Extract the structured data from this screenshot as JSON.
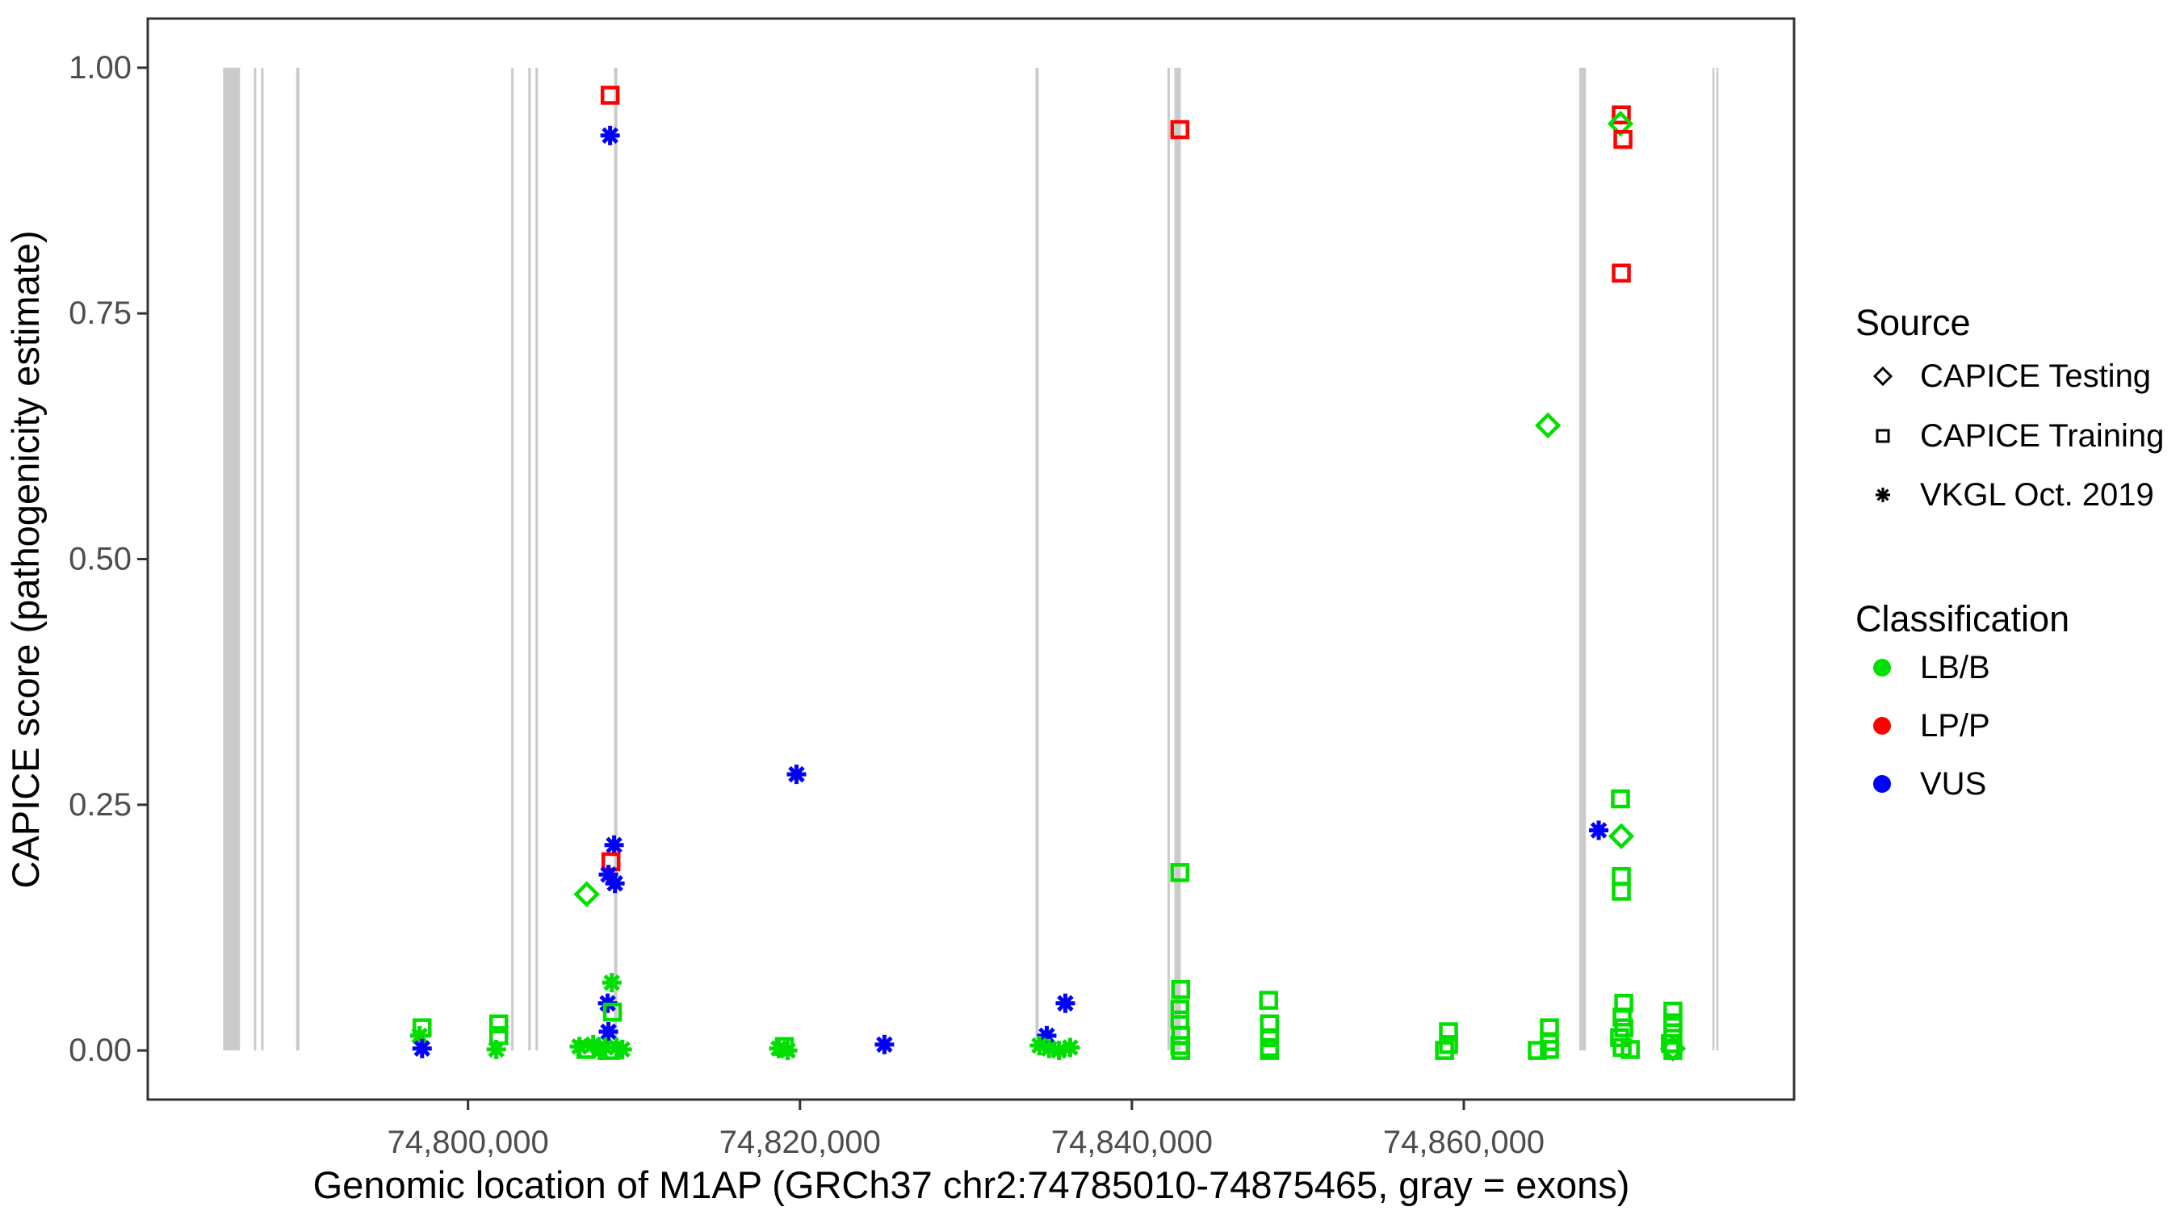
{
  "chart_data": {
    "type": "scatter",
    "title": "",
    "xlabel": "Genomic location of M1AP (GRCh37 chr2:74785010-74875465, gray = exons)",
    "ylabel": "CAPICE score (pathogenicity estimate)",
    "x_domain": [
      74780700,
      74879900
    ],
    "y_domain": [
      -0.05,
      1.05
    ],
    "grid": false,
    "x_ticks": [
      {
        "value": 74800000,
        "label": "74,800,000"
      },
      {
        "value": 74820000,
        "label": "74,820,000"
      },
      {
        "value": 74840000,
        "label": "74,840,000"
      },
      {
        "value": 74860000,
        "label": "74,860,000"
      }
    ],
    "y_ticks": [
      {
        "value": 1.0,
        "label": "1.00"
      },
      {
        "value": 0.75,
        "label": "0.75"
      },
      {
        "value": 0.5,
        "label": "0.50"
      },
      {
        "value": 0.25,
        "label": "0.25"
      },
      {
        "value": 0.0,
        "label": "0.00"
      }
    ],
    "exon_color": "#CBCBCB",
    "exons": [
      [
        74785240,
        74786260
      ],
      [
        74787090,
        74787240
      ],
      [
        74787530,
        74787680
      ],
      [
        74789640,
        74789840
      ],
      [
        74802600,
        74802750
      ],
      [
        74803630,
        74803780
      ],
      [
        74804060,
        74804210
      ],
      [
        74808800,
        74809000
      ],
      [
        74834190,
        74834390
      ],
      [
        74842140,
        74842290
      ],
      [
        74842560,
        74842950
      ],
      [
        74866960,
        74867360
      ],
      [
        74874980,
        74875100
      ],
      [
        74875220,
        74875340
      ]
    ],
    "shape_by_source": {
      "testing": "diamond",
      "training": "square",
      "vkgl": "asterisk"
    },
    "color_by_class": {
      "LB/B": "#00DF00",
      "LP/P": "#FF0000",
      "VUS": "#0000FF"
    },
    "points": [
      {
        "g": 74797230,
        "s": 0.023,
        "src": "training",
        "cls": "LB/B"
      },
      {
        "g": 74797080,
        "s": 0.015,
        "src": "vkgl",
        "cls": "LB/B"
      },
      {
        "g": 74797230,
        "s": 0.002,
        "src": "vkgl",
        "cls": "VUS"
      },
      {
        "g": 74801850,
        "s": 0.027,
        "src": "training",
        "cls": "LB/B"
      },
      {
        "g": 74801850,
        "s": 0.015,
        "src": "training",
        "cls": "LB/B"
      },
      {
        "g": 74801700,
        "s": 0.001,
        "src": "vkgl",
        "cls": "LB/B"
      },
      {
        "g": 74808560,
        "s": 0.972,
        "src": "training",
        "cls": "LP/P"
      },
      {
        "g": 74808560,
        "s": 0.931,
        "src": "vkgl",
        "cls": "VUS"
      },
      {
        "g": 74808800,
        "s": 0.209,
        "src": "vkgl",
        "cls": "VUS"
      },
      {
        "g": 74808610,
        "s": 0.192,
        "src": "training",
        "cls": "LP/P"
      },
      {
        "g": 74808460,
        "s": 0.179,
        "src": "vkgl",
        "cls": "VUS"
      },
      {
        "g": 74808850,
        "s": 0.17,
        "src": "vkgl",
        "cls": "VUS"
      },
      {
        "g": 74807150,
        "s": 0.159,
        "src": "testing",
        "cls": "LB/B"
      },
      {
        "g": 74808660,
        "s": 0.069,
        "src": "vkgl",
        "cls": "LB/B"
      },
      {
        "g": 74808410,
        "s": 0.048,
        "src": "vkgl",
        "cls": "VUS"
      },
      {
        "g": 74808700,
        "s": 0.039,
        "src": "training",
        "cls": "LB/B"
      },
      {
        "g": 74808460,
        "s": 0.019,
        "src": "vkgl",
        "cls": "VUS"
      },
      {
        "g": 74806710,
        "s": 0.004,
        "src": "vkgl",
        "cls": "LB/B"
      },
      {
        "g": 74807100,
        "s": 0.001,
        "src": "training",
        "cls": "LB/B"
      },
      {
        "g": 74807540,
        "s": 0.006,
        "src": "vkgl",
        "cls": "LB/B"
      },
      {
        "g": 74807930,
        "s": 0.0,
        "src": "vkgl",
        "cls": "LB/B"
      },
      {
        "g": 74808270,
        "s": 0.003,
        "src": "vkgl",
        "cls": "LB/B"
      },
      {
        "g": 74808610,
        "s": 0.0,
        "src": "training",
        "cls": "LB/B"
      },
      {
        "g": 74808950,
        "s": 0.003,
        "src": "vkgl",
        "cls": "LB/B"
      },
      {
        "g": 74809290,
        "s": 0.001,
        "src": "vkgl",
        "cls": "LB/B"
      },
      {
        "g": 74818720,
        "s": 0.002,
        "src": "vkgl",
        "cls": "LB/B"
      },
      {
        "g": 74819060,
        "s": 0.004,
        "src": "training",
        "cls": "LB/B"
      },
      {
        "g": 74819260,
        "s": 0.0,
        "src": "vkgl",
        "cls": "LB/B"
      },
      {
        "g": 74819790,
        "s": 0.281,
        "src": "vkgl",
        "cls": "VUS"
      },
      {
        "g": 74825090,
        "s": 0.006,
        "src": "vkgl",
        "cls": "VUS"
      },
      {
        "g": 74835990,
        "s": 0.048,
        "src": "vkgl",
        "cls": "VUS"
      },
      {
        "g": 74834870,
        "s": 0.015,
        "src": "vkgl",
        "cls": "VUS"
      },
      {
        "g": 74834430,
        "s": 0.005,
        "src": "vkgl",
        "cls": "LB/B"
      },
      {
        "g": 74835010,
        "s": 0.002,
        "src": "vkgl",
        "cls": "LB/B"
      },
      {
        "g": 74835600,
        "s": 0.0,
        "src": "vkgl",
        "cls": "LB/B"
      },
      {
        "g": 74836280,
        "s": 0.003,
        "src": "vkgl",
        "cls": "LB/B"
      },
      {
        "g": 74842890,
        "s": 0.937,
        "src": "training",
        "cls": "LP/P"
      },
      {
        "g": 74842890,
        "s": 0.181,
        "src": "training",
        "cls": "LB/B"
      },
      {
        "g": 74842940,
        "s": 0.062,
        "src": "training",
        "cls": "LB/B"
      },
      {
        "g": 74842890,
        "s": 0.042,
        "src": "training",
        "cls": "LB/B"
      },
      {
        "g": 74842890,
        "s": 0.031,
        "src": "training",
        "cls": "LB/B"
      },
      {
        "g": 74842940,
        "s": 0.015,
        "src": "training",
        "cls": "LB/B"
      },
      {
        "g": 74842890,
        "s": 0.005,
        "src": "training",
        "cls": "LB/B"
      },
      {
        "g": 74842940,
        "s": 0.0,
        "src": "training",
        "cls": "LB/B"
      },
      {
        "g": 74848240,
        "s": 0.051,
        "src": "training",
        "cls": "LB/B"
      },
      {
        "g": 74848290,
        "s": 0.027,
        "src": "training",
        "cls": "LB/B"
      },
      {
        "g": 74848290,
        "s": 0.013,
        "src": "training",
        "cls": "LB/B"
      },
      {
        "g": 74848290,
        "s": 0.003,
        "src": "training",
        "cls": "LB/B"
      },
      {
        "g": 74848290,
        "s": 0.0,
        "src": "training",
        "cls": "LB/B"
      },
      {
        "g": 74859080,
        "s": 0.019,
        "src": "training",
        "cls": "LB/B"
      },
      {
        "g": 74859080,
        "s": 0.006,
        "src": "training",
        "cls": "LB/B"
      },
      {
        "g": 74858840,
        "s": 0.0,
        "src": "training",
        "cls": "LB/B"
      },
      {
        "g": 74865160,
        "s": 0.023,
        "src": "training",
        "cls": "LB/B"
      },
      {
        "g": 74865160,
        "s": 0.009,
        "src": "training",
        "cls": "LB/B"
      },
      {
        "g": 74864430,
        "s": 0.0,
        "src": "training",
        "cls": "LB/B"
      },
      {
        "g": 74865160,
        "s": 0.001,
        "src": "training",
        "cls": "LB/B"
      },
      {
        "g": 74865070,
        "s": 0.636,
        "src": "testing",
        "cls": "LB/B"
      },
      {
        "g": 74869490,
        "s": 0.952,
        "src": "training",
        "cls": "LP/P"
      },
      {
        "g": 74869440,
        "s": 0.943,
        "src": "testing",
        "cls": "LB/B"
      },
      {
        "g": 74869590,
        "s": 0.927,
        "src": "training",
        "cls": "LP/P"
      },
      {
        "g": 74869490,
        "s": 0.791,
        "src": "training",
        "cls": "LP/P"
      },
      {
        "g": 74869440,
        "s": 0.256,
        "src": "training",
        "cls": "LB/B"
      },
      {
        "g": 74868130,
        "s": 0.224,
        "src": "vkgl",
        "cls": "VUS"
      },
      {
        "g": 74869490,
        "s": 0.218,
        "src": "testing",
        "cls": "LB/B"
      },
      {
        "g": 74869490,
        "s": 0.177,
        "src": "training",
        "cls": "LB/B"
      },
      {
        "g": 74869490,
        "s": 0.162,
        "src": "training",
        "cls": "LB/B"
      },
      {
        "g": 74869640,
        "s": 0.048,
        "src": "training",
        "cls": "LB/B"
      },
      {
        "g": 74869540,
        "s": 0.034,
        "src": "training",
        "cls": "LB/B"
      },
      {
        "g": 74869640,
        "s": 0.023,
        "src": "training",
        "cls": "LB/B"
      },
      {
        "g": 74869390,
        "s": 0.013,
        "src": "training",
        "cls": "LB/B"
      },
      {
        "g": 74869540,
        "s": 0.003,
        "src": "training",
        "cls": "LB/B"
      },
      {
        "g": 74870030,
        "s": 0.001,
        "src": "training",
        "cls": "LB/B"
      },
      {
        "g": 74872600,
        "s": 0.04,
        "src": "training",
        "cls": "LB/B"
      },
      {
        "g": 74872600,
        "s": 0.028,
        "src": "training",
        "cls": "LB/B"
      },
      {
        "g": 74872600,
        "s": 0.018,
        "src": "training",
        "cls": "LB/B"
      },
      {
        "g": 74872450,
        "s": 0.007,
        "src": "training",
        "cls": "LB/B"
      },
      {
        "g": 74872600,
        "s": 0.0,
        "src": "training",
        "cls": "LB/B"
      },
      {
        "g": 74872600,
        "s": 0.002,
        "src": "testing",
        "cls": "LB/B"
      }
    ]
  },
  "legend": {
    "source": {
      "title": "Source",
      "items": [
        {
          "label": "CAPICE Testing",
          "shape": "diamond"
        },
        {
          "label": "CAPICE Training",
          "shape": "square"
        },
        {
          "label": "VKGL Oct. 2019",
          "shape": "asterisk"
        }
      ]
    },
    "classification": {
      "title": "Classification",
      "items": [
        {
          "label": "LB/B",
          "color": "#00DF00"
        },
        {
          "label": "LP/P",
          "color": "#FF0000"
        },
        {
          "label": "VUS",
          "color": "#0000FF"
        }
      ]
    }
  }
}
